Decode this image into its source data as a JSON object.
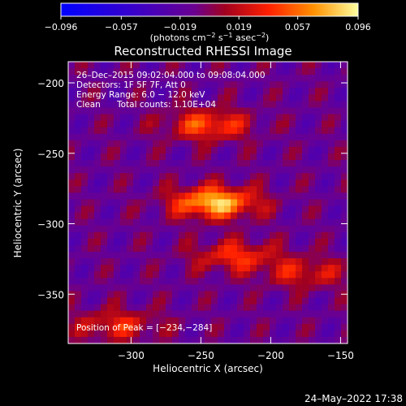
{
  "chart_data": {
    "type": "heatmap",
    "title": "Reconstructed RHESSI Image",
    "xlabel": "Heliocentric X (arcsec)",
    "ylabel": "Heliocentric Y (arcsec)",
    "xlim": [
      -345,
      -145
    ],
    "ylim": [
      -385,
      -185
    ],
    "x_ticks": [
      -300,
      -250,
      -200,
      -150
    ],
    "x_tick_labels": [
      "−300",
      "−250",
      "−200",
      "−150"
    ],
    "y_ticks": [
      -200,
      -250,
      -300,
      -350
    ],
    "y_tick_labels": [
      "−200",
      "−250",
      "−300",
      "−350"
    ],
    "colorbar": {
      "range": [
        -0.096,
        0.096
      ],
      "ticks": [
        -0.096,
        -0.057,
        -0.019,
        0.019,
        0.057,
        0.096
      ],
      "tick_labels": [
        "−0.096",
        "−0.057",
        "−0.019",
        "0.019",
        "0.057",
        "0.096"
      ],
      "units_prefix": "(photons cm",
      "units_sup1": "−2",
      "units_mid": " s",
      "units_sup2": "−1",
      "units_mid2": " asec",
      "units_sup3": "−2",
      "units_suffix": ")"
    },
    "annotations": {
      "time_range": "26–Dec–2015 09:02:04.000 to 09:08:04.000",
      "detectors": "Detectors: 1F 5F 7F, Att 0",
      "energy": "Energy Range: 6.0 − 12.0 keV",
      "algorithm": "Clean",
      "total_counts": "Total counts: 1.10E+04",
      "peak": "Position of Peak = [−234,−284]"
    },
    "peak": [
      -234,
      -284
    ],
    "sources": [
      {
        "x": -245,
        "y": -230,
        "amplitude": 0.06
      },
      {
        "x": -240,
        "y": -285,
        "amplitude": 0.096
      },
      {
        "x": -225,
        "y": -323,
        "amplitude": 0.05
      },
      {
        "x": -310,
        "y": -372,
        "amplitude": 0.045
      },
      {
        "x": -175,
        "y": -335,
        "amplitude": 0.04
      }
    ],
    "grid": false
  },
  "footer": {
    "timestamp": "24–May–2022 17:38"
  },
  "colors": {
    "background": "#000000",
    "axes": "#ffffff",
    "colormap": [
      "#0000ff",
      "#4000d0",
      "#7800a0",
      "#b01010",
      "#ff2000",
      "#ff8000",
      "#ffff60",
      "#ffffff"
    ]
  }
}
